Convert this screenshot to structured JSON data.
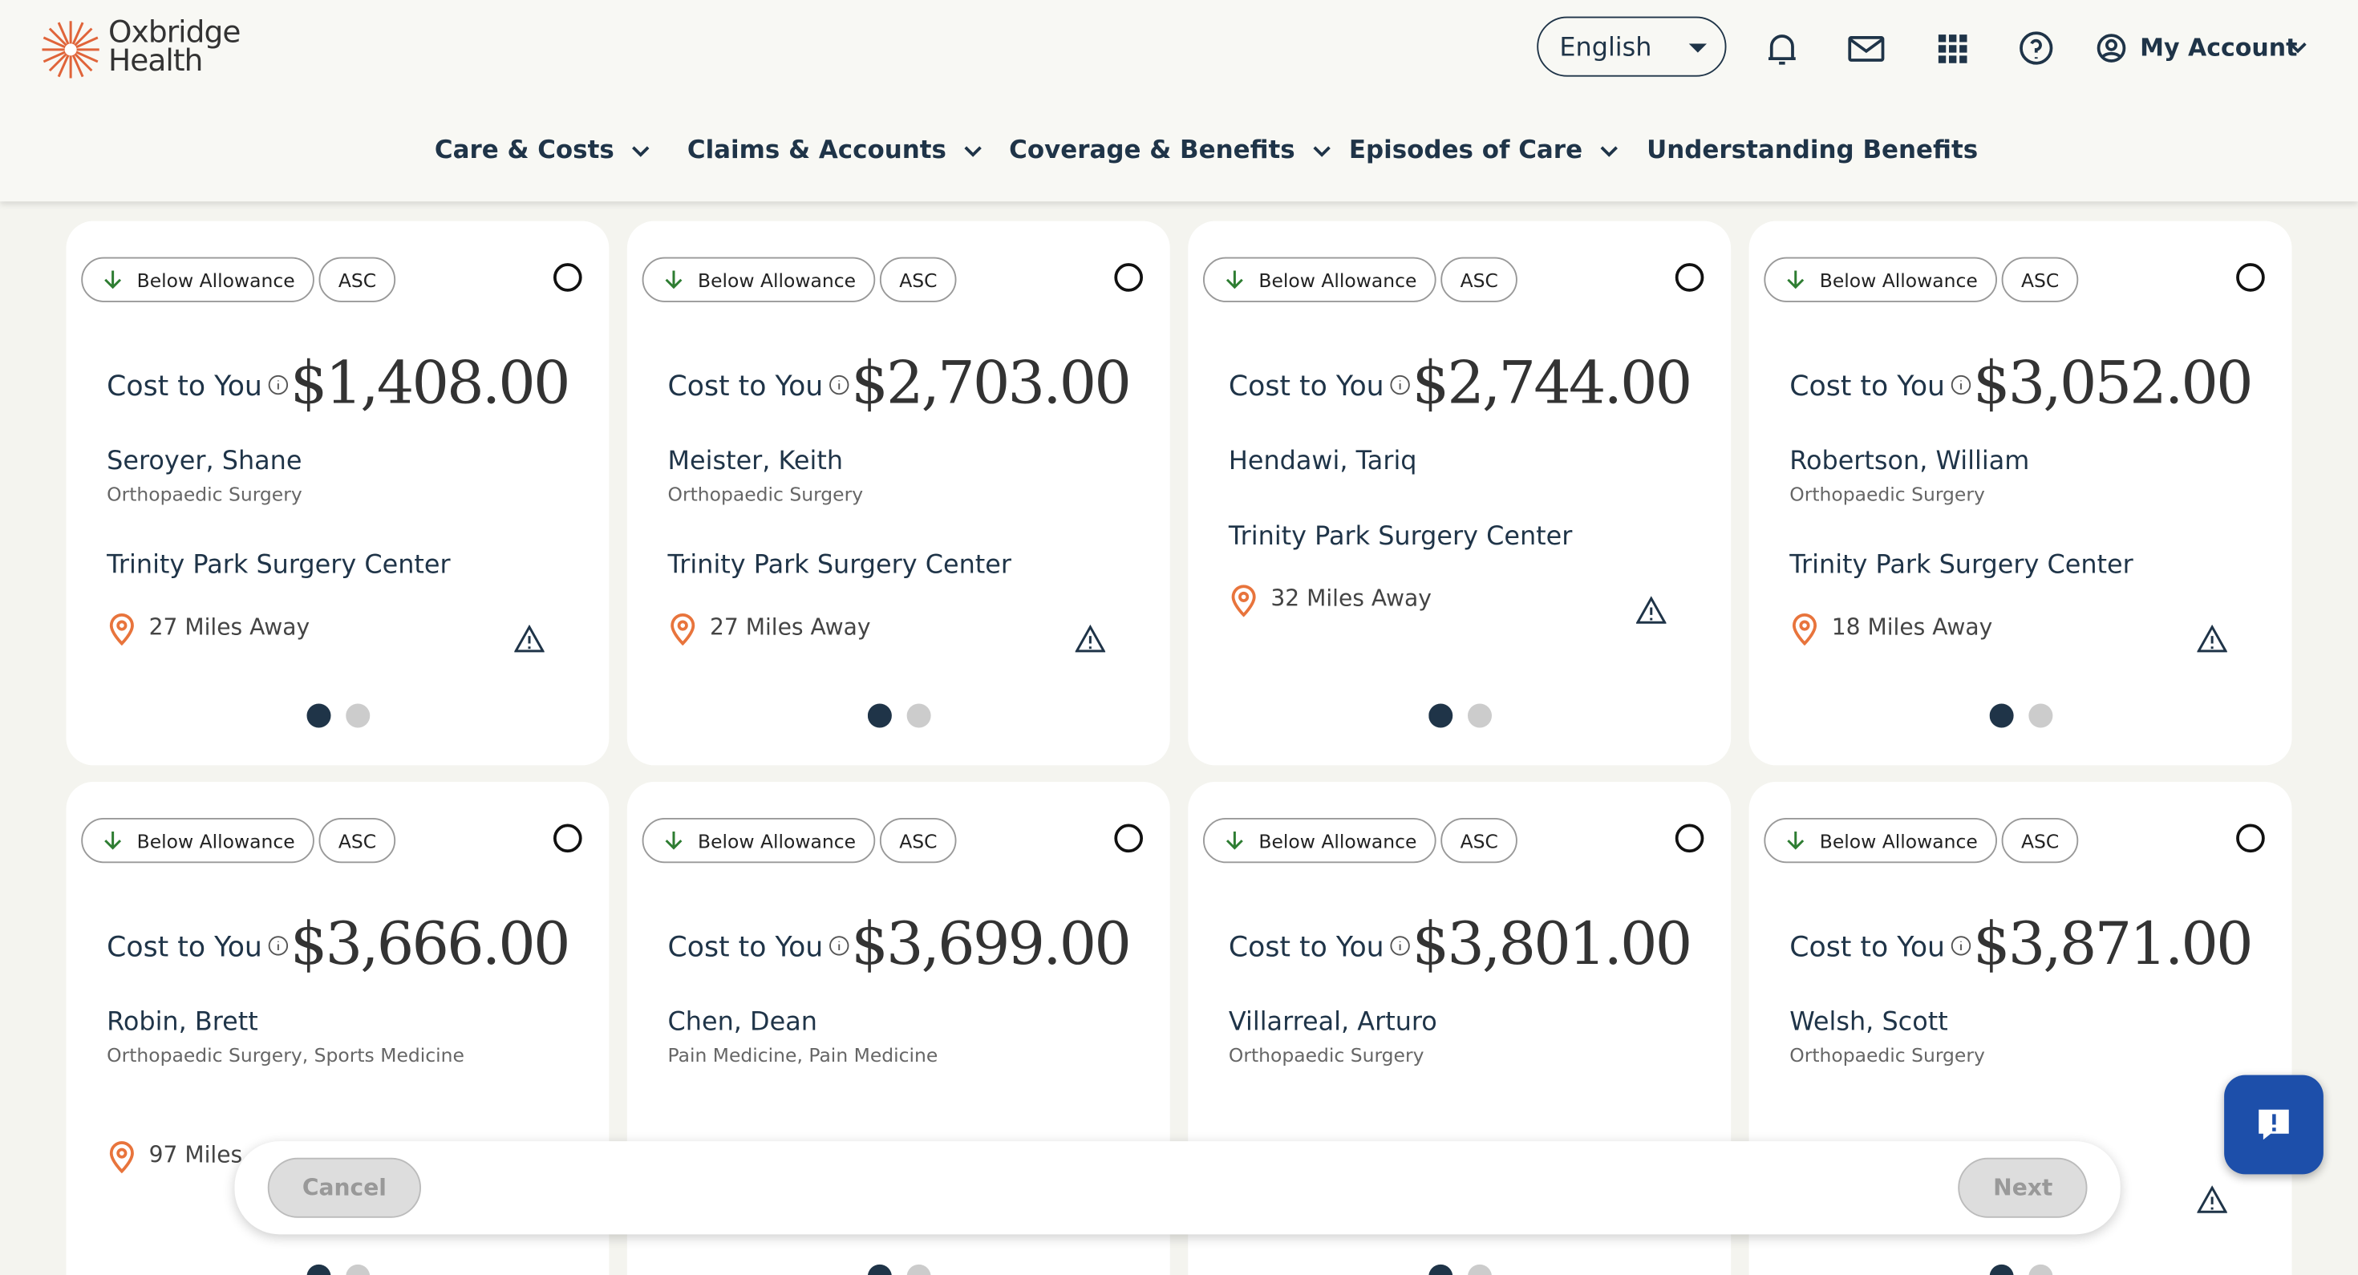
{
  "header": {
    "logo_line1": "Oxbridge",
    "logo_line2": "Health",
    "language": "English",
    "account": "My Account"
  },
  "nav": [
    "Care & Costs",
    "Claims & Accounts",
    "Coverage & Benefits",
    "Episodes of Care",
    "Understanding Benefits"
  ],
  "cards": [
    {
      "badges": [
        "Below Allowance",
        "ASC"
      ],
      "cost_label": "Cost to You",
      "cost": "$1,408.00",
      "name": "Seroyer, Shane",
      "specialty": "Orthopaedic Surgery",
      "facility": "Trinity Park Surgery Center",
      "distance": "27 Miles Away"
    },
    {
      "badges": [
        "Below Allowance",
        "ASC"
      ],
      "cost_label": "Cost to You",
      "cost": "$2,703.00",
      "name": "Meister, Keith",
      "specialty": "Orthopaedic Surgery",
      "facility": "Trinity Park Surgery Center",
      "distance": "27 Miles Away"
    },
    {
      "badges": [
        "Below Allowance",
        "ASC"
      ],
      "cost_label": "Cost to You",
      "cost": "$2,744.00",
      "name": "Hendawi, Tariq",
      "facility": "Trinity Park Surgery Center",
      "distance": "32 Miles Away"
    },
    {
      "badges": [
        "Below Allowance",
        "ASC"
      ],
      "cost_label": "Cost to You",
      "cost": "$3,052.00",
      "name": "Robertson, William",
      "specialty": "Orthopaedic Surgery",
      "facility": "Trinity Park Surgery Center",
      "distance": "18 Miles Away"
    },
    {
      "badges": [
        "Below Allowance",
        "ASC"
      ],
      "cost_label": "Cost to You",
      "cost": "$3,666.00",
      "name": "Robin, Brett",
      "specialty": "Orthopaedic Surgery, Sports Medicine",
      "distance": "97 Miles"
    },
    {
      "badges": [
        "Below Allowance",
        "ASC"
      ],
      "cost_label": "Cost to You",
      "cost": "$3,699.00",
      "name": "Chen, Dean",
      "specialty": "Pain Medicine, Pain Medicine"
    },
    {
      "badges": [
        "Below Allowance",
        "ASC"
      ],
      "cost_label": "Cost to You",
      "cost": "$3,801.00",
      "name": "Villarreal, Arturo",
      "specialty": "Orthopaedic Surgery"
    },
    {
      "badges": [
        "Below Allowance",
        "ASC"
      ],
      "cost_label": "Cost to You",
      "cost": "$3,871.00",
      "name": "Welsh, Scott",
      "specialty": "Orthopaedic Surgery"
    }
  ],
  "footer": {
    "cancel": "Cancel",
    "next": "Next"
  }
}
